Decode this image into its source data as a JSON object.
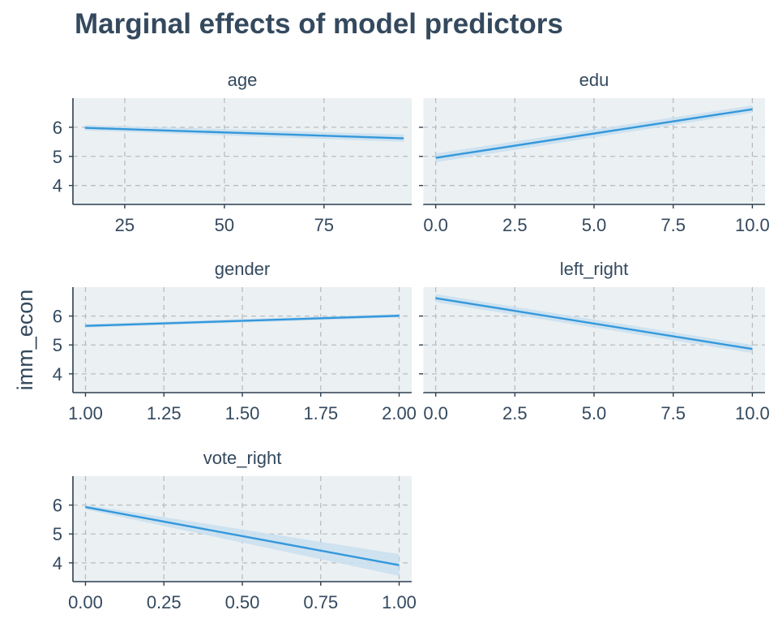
{
  "chart_data": {
    "type": "line",
    "title": "Marginal effects of model predictors",
    "ylabel": "imm_econ",
    "ylim": [
      3.35,
      7.0
    ],
    "yticks": [
      4,
      5,
      6
    ],
    "grid": true,
    "line_color": "#3498db",
    "ribbon_color": "#c9dff0",
    "panel_bg": "#ebf0f2",
    "panels": [
      {
        "label": "age",
        "xlim": [
          12,
          97
        ],
        "xticks": [
          25,
          50,
          75
        ],
        "xtick_labels": [
          "25",
          "50",
          "75"
        ],
        "x": [
          15,
          95
        ],
        "y": [
          5.98,
          5.62
        ],
        "ci_lower": [
          5.89,
          5.5
        ],
        "ci_upper": [
          6.08,
          5.75
        ]
      },
      {
        "label": "edu",
        "xlim": [
          -0.4,
          10.4
        ],
        "xticks": [
          0,
          2.5,
          5,
          7.5,
          10
        ],
        "xtick_labels": [
          "0.0",
          "2.5",
          "5.0",
          "7.5",
          "10.0"
        ],
        "x": [
          0,
          10
        ],
        "y": [
          4.95,
          6.62
        ],
        "ci_lower": [
          4.8,
          6.5
        ],
        "ci_upper": [
          5.1,
          6.75
        ]
      },
      {
        "label": "gender",
        "xlim": [
          0.96,
          2.04
        ],
        "xticks": [
          1,
          1.25,
          1.5,
          1.75,
          2
        ],
        "xtick_labels": [
          "1.00",
          "1.25",
          "1.50",
          "1.75",
          "2.00"
        ],
        "x": [
          1,
          2
        ],
        "y": [
          5.66,
          6.01
        ],
        "ci_lower": [
          5.6,
          5.95
        ],
        "ci_upper": [
          5.72,
          6.07
        ]
      },
      {
        "label": "left_right",
        "xlim": [
          -0.4,
          10.4
        ],
        "xticks": [
          0,
          2.5,
          5,
          7.5,
          10
        ],
        "xtick_labels": [
          "0.0",
          "2.5",
          "5.0",
          "7.5",
          "10.0"
        ],
        "x": [
          0,
          10
        ],
        "y": [
          6.62,
          4.86
        ],
        "ci_lower": [
          6.48,
          4.72
        ],
        "ci_upper": [
          6.76,
          5.0
        ]
      },
      {
        "label": "vote_right",
        "xlim": [
          -0.04,
          1.04
        ],
        "xticks": [
          0,
          0.25,
          0.5,
          0.75,
          1
        ],
        "xtick_labels": [
          "0.00",
          "0.25",
          "0.50",
          "0.75",
          "1.00"
        ],
        "x": [
          0,
          1
        ],
        "y": [
          5.93,
          3.92
        ],
        "ci_lower": [
          5.85,
          3.55
        ],
        "ci_upper": [
          6.01,
          4.3
        ]
      }
    ]
  }
}
